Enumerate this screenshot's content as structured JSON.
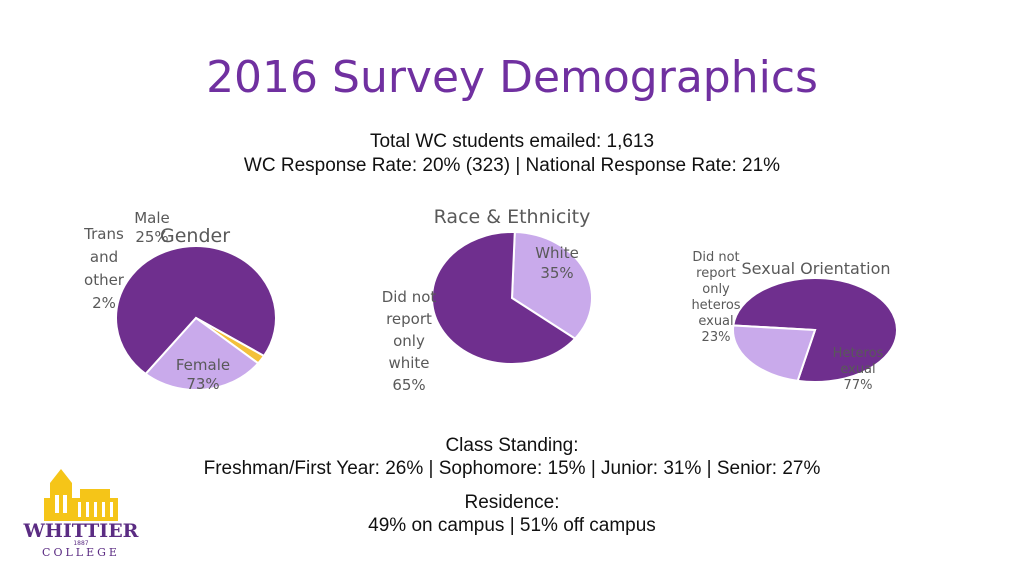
{
  "slide": {
    "title": "2016 Survey Demographics",
    "emailed": "Total WC students emailed: 1,613",
    "response": "WC Response Rate: 20% (323)  |  National Response Rate: 21%",
    "class_heading": "Class Standing:",
    "class_values": "Freshman/First Year: 26%  |  Sophomore: 15%  |  Junior: 31%  |  Senior: 27%",
    "residence_heading": "Residence:",
    "residence_values": "49% on campus | 51% off campus"
  },
  "logo": {
    "name": "WHITTIER",
    "sub": "COLLEGE",
    "year": "1887",
    "gold": "#f5c518",
    "purple": "#5b2c83"
  },
  "colors": {
    "purple": "#6f2f8e",
    "lavender": "#c9aaeb",
    "gold": "#f3c13a",
    "label": "#595959"
  },
  "chart_data": [
    {
      "type": "pie",
      "title": "Gender",
      "slices": [
        {
          "label": "Female",
          "value": 73,
          "color": "#6f2f8e"
        },
        {
          "label": "Trans and other",
          "value": 2,
          "color": "#f3c13a"
        },
        {
          "label": "Male",
          "value": 25,
          "color": "#c9aaeb"
        }
      ]
    },
    {
      "type": "pie",
      "title": "Race & Ethnicity",
      "slices": [
        {
          "label": "White",
          "value": 35,
          "color": "#c9aaeb"
        },
        {
          "label": "Did not report only white",
          "value": 65,
          "color": "#6f2f8e"
        }
      ]
    },
    {
      "type": "pie",
      "title": "Sexual Orientation",
      "slices": [
        {
          "label": "Heterosexual",
          "value": 77,
          "color": "#6f2f8e"
        },
        {
          "label": "Did not report only heterosexual",
          "value": 23,
          "color": "#c9aaeb"
        }
      ]
    }
  ]
}
